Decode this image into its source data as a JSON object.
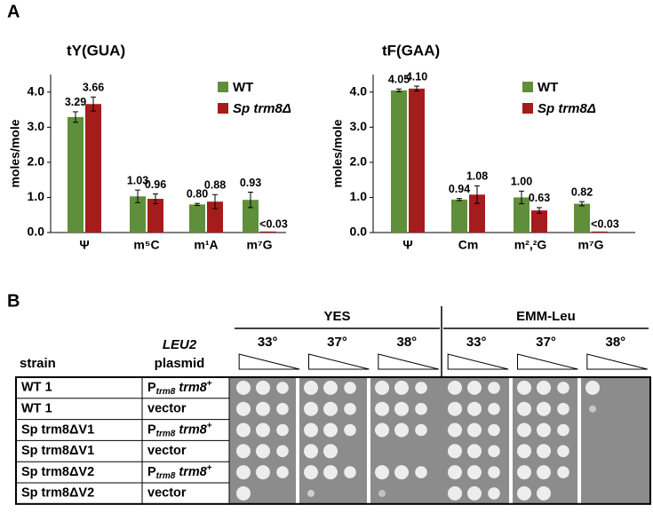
{
  "panels": [
    "A",
    "B"
  ],
  "chart_data": [
    {
      "type": "bar",
      "title": "tY(GUA)",
      "ylabel": "moles/mole",
      "categories": [
        "Ψ",
        "m⁵C",
        "m¹A",
        "m⁷G"
      ],
      "series": [
        {
          "name": "WT",
          "color": "#5f8f3a",
          "values": [
            3.29,
            1.03,
            0.8,
            0.93
          ],
          "errors": [
            0.15,
            0.18,
            0.03,
            0.22
          ],
          "value_labels": [
            "3.29",
            "1.03",
            "0.80",
            "0.93"
          ]
        },
        {
          "name": "Sp trm8Δ",
          "color": "#a51c1c",
          "values": [
            3.66,
            0.96,
            0.88,
            0.03
          ],
          "errors": [
            0.2,
            0.14,
            0.2,
            0
          ],
          "value_labels": [
            "3.66",
            "0.96",
            "0.88",
            "<0.03"
          ]
        }
      ],
      "ylim": [
        0,
        4.5
      ],
      "yticks": [
        {
          "value": 0,
          "label": "0.0"
        },
        {
          "value": 1,
          "label": "1.0"
        },
        {
          "value": 2,
          "label": "2.0"
        },
        {
          "value": 3,
          "label": "3.0"
        },
        {
          "value": 4,
          "label": "4.0"
        }
      ]
    },
    {
      "type": "bar",
      "title": "tF(GAA)",
      "ylabel": "moles/mole",
      "categories": [
        "Ψ",
        "Cm",
        "m²,²G",
        "m⁷G"
      ],
      "series": [
        {
          "name": "WT",
          "color": "#5f8f3a",
          "values": [
            4.05,
            0.94,
            1.0,
            0.82
          ],
          "errors": [
            0.04,
            0.03,
            0.18,
            0.06
          ],
          "value_labels": [
            "4.05",
            "0.94",
            "1.00",
            "0.82"
          ]
        },
        {
          "name": "Sp trm8Δ",
          "color": "#a51c1c",
          "values": [
            4.1,
            1.08,
            0.63,
            0.03
          ],
          "errors": [
            0.07,
            0.25,
            0.08,
            0
          ],
          "value_labels": [
            "4.10",
            "1.08",
            "0.63",
            "<0.03"
          ]
        }
      ],
      "ylim": [
        0,
        4.5
      ],
      "yticks": [
        {
          "value": 0,
          "label": "0.0"
        },
        {
          "value": 1,
          "label": "1.0"
        },
        {
          "value": 2,
          "label": "2.0"
        },
        {
          "value": 3,
          "label": "3.0"
        },
        {
          "value": 4,
          "label": "4.0"
        }
      ]
    }
  ],
  "table": {
    "media": [
      "YES",
      "EMM-Leu"
    ],
    "temperatures": [
      "33°",
      "37°",
      "38°"
    ],
    "strain_header": "strain",
    "plasmid_header": [
      "LEU2",
      "plasmid"
    ],
    "rows": [
      {
        "strain": "WT 1",
        "plasmid": {
          "main": "P",
          "sub": "trm8",
          "gene": "trm8",
          "sup": "+"
        }
      },
      {
        "strain": "WT 1",
        "plasmid": "vector"
      },
      {
        "strain": "Sp trm8ΔV1",
        "plasmid": {
          "main": "P",
          "sub": "trm8",
          "gene": "trm8",
          "sup": "+"
        }
      },
      {
        "strain": "Sp trm8ΔV1",
        "plasmid": "vector"
      },
      {
        "strain": "Sp trm8ΔV2",
        "plasmid": {
          "main": "P",
          "sub": "trm8",
          "gene": "trm8",
          "sup": "+"
        }
      },
      {
        "strain": "Sp trm8ΔV2",
        "plasmid": "vector"
      }
    ]
  }
}
